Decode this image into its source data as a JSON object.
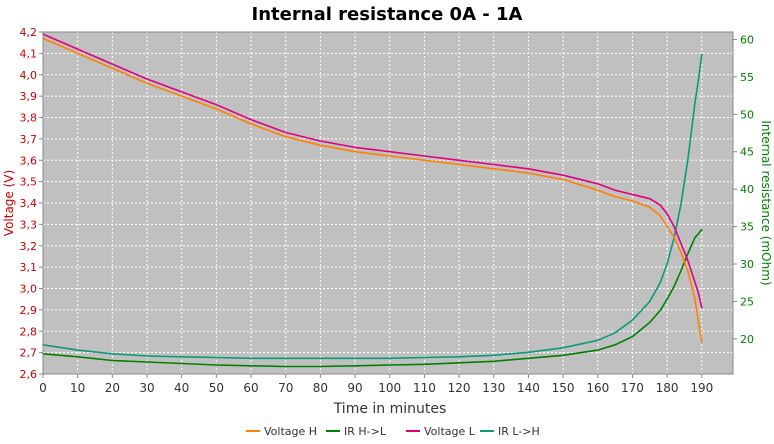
{
  "colors": {
    "plot_bg": "#c0c0c0",
    "grid": "#ffffff",
    "voltage_h": "#ff8000",
    "ir_h_to_l": "#008000",
    "voltage_l": "#e0007f",
    "ir_l_to_h": "#0a9a7a",
    "left_axis": "#cc0000",
    "right_axis": "#008000"
  },
  "chart_data": {
    "type": "line",
    "title": "Internal resistance  0A - 1A",
    "xlabel": "Time in minutes",
    "ylabel_left": "Voltage (V)",
    "ylabel_right": "Internal resistance (mOhm)",
    "xlim": [
      0,
      199
    ],
    "ylim_left": [
      2.6,
      4.2
    ],
    "ylim_right": [
      15.3,
      61
    ],
    "x_ticks": [
      "0",
      "10",
      "20",
      "30",
      "40",
      "50",
      "60",
      "70",
      "80",
      "90",
      "100",
      "110",
      "120",
      "130",
      "140",
      "150",
      "160",
      "170",
      "180",
      "190"
    ],
    "y_left_ticks": [
      "2,6",
      "2,7",
      "2,8",
      "2,9",
      "3,0",
      "3,1",
      "3,2",
      "3,3",
      "3,4",
      "3,5",
      "3,6",
      "3,7",
      "3,8",
      "3,9",
      "4,0",
      "4,1",
      "4,2"
    ],
    "y_right_ticks": [
      "20",
      "25",
      "30",
      "35",
      "40",
      "45",
      "50",
      "55",
      "60"
    ],
    "grid": true,
    "legend_position": "bottom",
    "series": [
      {
        "name": "Voltage H",
        "axis": "left",
        "x": [
          0,
          10,
          20,
          30,
          40,
          50,
          60,
          70,
          80,
          90,
          100,
          110,
          120,
          130,
          140,
          150,
          160,
          165,
          170,
          175,
          178,
          180,
          182,
          184,
          186,
          188,
          189,
          190
        ],
        "y": [
          4.17,
          4.1,
          4.03,
          3.96,
          3.9,
          3.84,
          3.77,
          3.71,
          3.67,
          3.64,
          3.62,
          3.6,
          3.58,
          3.56,
          3.54,
          3.51,
          3.46,
          3.43,
          3.41,
          3.38,
          3.34,
          3.29,
          3.24,
          3.17,
          3.08,
          2.95,
          2.85,
          2.75
        ]
      },
      {
        "name": "IR H->L",
        "axis": "right",
        "x": [
          0,
          10,
          20,
          30,
          40,
          50,
          60,
          70,
          80,
          90,
          100,
          110,
          120,
          130,
          140,
          150,
          160,
          165,
          170,
          175,
          178,
          180,
          182,
          184,
          186,
          188,
          190
        ],
        "y": [
          18.0,
          17.6,
          17.1,
          16.9,
          16.7,
          16.5,
          16.4,
          16.3,
          16.3,
          16.4,
          16.5,
          16.6,
          16.8,
          17.0,
          17.4,
          17.8,
          18.5,
          19.2,
          20.3,
          22.2,
          23.8,
          25.3,
          27.0,
          29.1,
          31.4,
          33.5,
          34.6
        ]
      },
      {
        "name": "Voltage L",
        "axis": "left",
        "x": [
          0,
          10,
          20,
          30,
          40,
          50,
          60,
          70,
          80,
          90,
          100,
          110,
          120,
          130,
          140,
          150,
          160,
          165,
          170,
          175,
          178,
          180,
          182,
          184,
          186,
          188,
          189,
          190
        ],
        "y": [
          4.19,
          4.12,
          4.05,
          3.98,
          3.92,
          3.86,
          3.79,
          3.73,
          3.69,
          3.66,
          3.64,
          3.62,
          3.6,
          3.58,
          3.56,
          3.53,
          3.49,
          3.46,
          3.44,
          3.42,
          3.39,
          3.35,
          3.29,
          3.21,
          3.13,
          3.03,
          2.98,
          2.91
        ]
      },
      {
        "name": "IR L->H",
        "axis": "right",
        "x": [
          0,
          10,
          20,
          30,
          40,
          50,
          60,
          70,
          80,
          90,
          100,
          110,
          120,
          130,
          140,
          150,
          160,
          165,
          170,
          175,
          178,
          180,
          182,
          184,
          186,
          188,
          189,
          190
        ],
        "y": [
          19.2,
          18.5,
          18.0,
          17.7,
          17.6,
          17.5,
          17.4,
          17.4,
          17.4,
          17.4,
          17.4,
          17.5,
          17.6,
          17.8,
          18.2,
          18.8,
          19.8,
          20.8,
          22.5,
          25.0,
          27.5,
          30.0,
          33.5,
          38.0,
          44.0,
          51.5,
          54.5,
          58.0
        ]
      }
    ]
  }
}
